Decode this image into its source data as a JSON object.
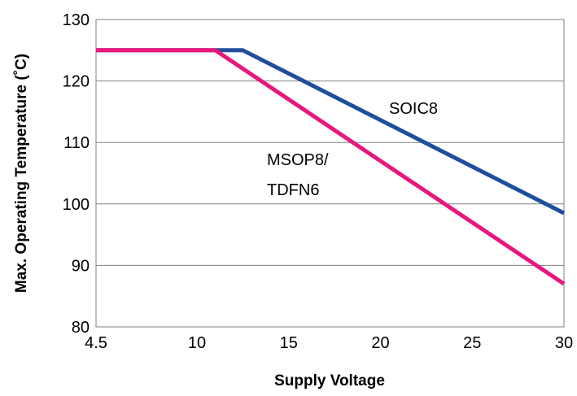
{
  "chart_data": {
    "type": "line",
    "title": "",
    "xlabel": "Supply Voltage",
    "ylabel": "Max. Operating Temperature (˚C)",
    "xlim": [
      4.5,
      30
    ],
    "ylim": [
      80,
      130
    ],
    "x_ticks": [
      4.5,
      10,
      15,
      20,
      25,
      30
    ],
    "x_tick_labels": [
      "4.5",
      "10",
      "15",
      "20",
      "25",
      "30"
    ],
    "y_ticks": [
      80,
      90,
      100,
      110,
      120,
      130
    ],
    "y_tick_labels": [
      "80",
      "90",
      "100",
      "110",
      "120",
      "130"
    ],
    "grid": "horizontal",
    "legend": "none",
    "series": [
      {
        "name": "SOIC8",
        "color": "#1f4e9c",
        "x": [
          4.5,
          12.5,
          30
        ],
        "y": [
          125,
          125,
          98.5
        ]
      },
      {
        "name": "MSOP8/ TDFN6",
        "label_lines": [
          "MSOP8/",
          "TDFN6"
        ],
        "color": "#e8177d",
        "x": [
          4.5,
          11,
          30
        ],
        "y": [
          125,
          125,
          87
        ]
      }
    ]
  }
}
